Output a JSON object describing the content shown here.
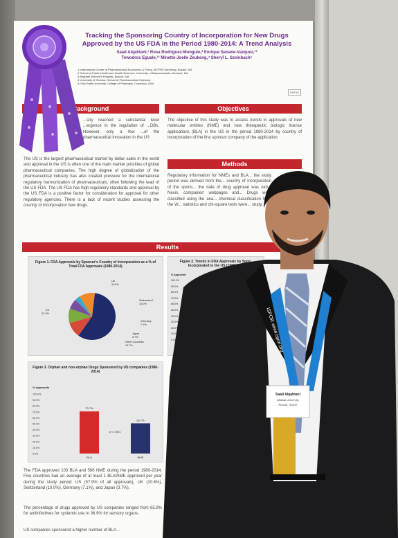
{
  "poster": {
    "title": "Tracking the Sponsoring Country of Incorporation for New Drugs Approved by the US FDA in the Period 1980-2014: A Trend Analysis",
    "authors_line1": "Saad Alqahtani,¹ Rosa Rodriguez-Monguio,² Enrique Seoane-Vazquez,¹³",
    "authors_line2": "Tewodros Eguale,¹³ Minette-Joelle Zeukeng,⁴ Sheryl L. Szeinbach⁵",
    "affiliations": [
      "1 International Center of Pharmaceutical Economics & Policy, MCPHS University, Boston, MA",
      "2 School of Public Health and Health Sciences, University of Massachusetts, Amherst, MA",
      "3 Brigham Women's Hospital, Boston, MA",
      "4 University of Geneva, School of Pharmaceutical Sciences",
      "5 Ohio State University, College of Pharmacy, Columbus, Ohio"
    ],
    "poster_number": "PHP10",
    "background_heading": "Background",
    "background_text1": "...stry reached a substantial level ...ergence in the regulation of ...DBs. However, only a few ...of the pharmaceutical innovation in the US",
    "background_text2": "The US is the largest pharmaceutical market by dollar sales in the world and approval in the US is often one of the main market priorities of global pharmaceutical companies. The high degree of globalization of the pharmaceutical industry has also created pressure for the international regulatory harmonization of pharmaceuticals, often following the lead of the US FDA. The US FDA has high regulatory standards and approval by the US FDA is a positive factor for consideration for approval for other regulatory agencies. There is a lack of recent studies assessing the country of incorporation new drugs.",
    "objectives_heading": "Objectives",
    "objectives_text": "The objective of this study was to assess trends in approvals of new molecular entities (NME) and new therapeutic biologic license applications (BLA) in the US in the period 1980-2014 by country of incorporation of the first sponsor company of the application.",
    "methods_heading": "Methods",
    "methods_text": "Regulatory information for NMEs and BLA... the study period was derived from the... country of incorporation of the spons... the date of drug approval was extr... Nexis, companies' webpages and... Drugs were classified using the ana... chemical classification from the W... statistics and chi-square tests were... study.",
    "results_heading": "Results",
    "fig1_title": "Figure 1. FDA Approvals by Sponsor's Country of Incorporation as a % of Total FDA Approvals (1980-2014)",
    "fig2_title": "Figure 2. Trends in FDA Approvals by Spon... Incorporated in the US (1980-2014)",
    "fig2_ylabel": "% Approvals",
    "fig2_ticks": [
      "100.0%",
      "90.0%",
      "80.0%",
      "70.0%",
      "60.0%",
      "50.0%",
      "40.0%",
      "30.0%",
      "20.0%",
      "10.0%",
      "0.0%"
    ],
    "fig3_title": "Figure 3. Orphan and non-orphan Drugs Sponsored by US companies (1980-2014)",
    "results_text1": "The FDA approved 103 BLA and 566 NME during the period 1980-2014. Five countries had an average of at least 1 BLA/NME approved per year during the study period: US (57.9% of all approvals), UK (10.6%), Switzerland (10.0%), Germany (7.1%), and Japan (3.7%).",
    "results_text2": "The percentage of drugs approved by US companies ranged from 65.9% for antiinfectives for systemic use to 36.9% for sensory organs.",
    "results_text3": "US companies sponsored a higher number of BLA..."
  },
  "chart_data": [
    {
      "type": "pie",
      "title": "Figure 1. FDA Approvals by Sponsor's Country of Incorporation as a % of Total FDA Approvals (1980-2014)",
      "labels": [
        "US\n57.9%",
        "UK\n10.6%",
        "Switzerland\n10.0%",
        "Germany\n7.1%",
        "Japan\n3.7%",
        "Other Countries\n10.7%"
      ],
      "values": [
        57.9,
        10.6,
        10.0,
        7.1,
        3.7,
        10.7
      ],
      "colors": [
        "#1f2a6b",
        "#d64a3a",
        "#7aab3c",
        "#7b4fa0",
        "#3fa7c9",
        "#ef8a2a"
      ]
    },
    {
      "type": "bar",
      "title": "Figure 3. Orphan and non-orphan Drugs Sponsored by US companies (1980-2014)",
      "categories": [
        "BLA",
        "NME"
      ],
      "values": [
        70.7,
        50.7
      ],
      "value_labels": [
        "70.7%",
        "50.7%"
      ],
      "colors": [
        "#d42a2a",
        "#28336e"
      ],
      "ylabel": "% Approvals",
      "yticks": [
        "100.0%",
        "90.0%",
        "80.0%",
        "70.0%",
        "60.0%",
        "50.0%",
        "40.0%",
        "30.0%",
        "20.0%",
        "10.0%",
        "0.0%"
      ],
      "ylim": [
        0,
        100
      ],
      "annotation": "p < 0.001"
    }
  ],
  "badge": {
    "name": "Saad Alqahtani",
    "org": "Alfaisal University",
    "city": "Riyadh, SAUDI"
  },
  "lanyard_text": "ISPOR www.ispor.org",
  "colors": {
    "section_red": "#c5252d",
    "title_purple": "#6b2a8c",
    "ribbon_purple": "#7b3cc4",
    "suit": "#1b1b1d",
    "tie": "#d9a826"
  }
}
